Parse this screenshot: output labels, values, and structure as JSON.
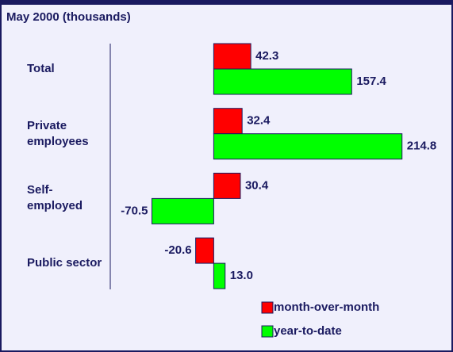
{
  "chart_data": {
    "type": "bar",
    "orientation": "horizontal",
    "subtitle": "May 2000 (thousands)",
    "categories": [
      "Total",
      "Private employees",
      "Self-employed",
      "Public sector"
    ],
    "series": [
      {
        "name": "month-over-month",
        "color": "#ff0000",
        "values": [
          42.3,
          32.4,
          30.4,
          -20.6
        ],
        "value_labels": [
          "42.3",
          "32.4",
          "30.4",
          "-20.6"
        ]
      },
      {
        "name": "year-to-date",
        "color": "#00ff00",
        "values": [
          157.4,
          214.8,
          -70.5,
          13
        ],
        "value_labels": [
          "157.4",
          "214.8",
          "-70.5",
          "13.0"
        ]
      }
    ],
    "xlim": [
      -118,
      263
    ]
  }
}
